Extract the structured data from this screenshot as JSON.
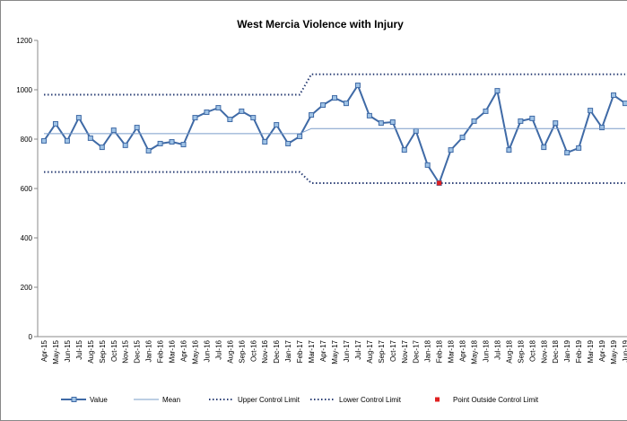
{
  "chart_data": {
    "type": "line",
    "title": "West Mercia Violence with Injury",
    "categories": [
      "Apr-15",
      "May-15",
      "Jun-15",
      "Jul-15",
      "Aug-15",
      "Sep-15",
      "Oct-15",
      "Nov-15",
      "Dec-15",
      "Jan-16",
      "Feb-16",
      "Mar-16",
      "Apr-16",
      "May-16",
      "Jun-16",
      "Jul-16",
      "Aug-16",
      "Sep-16",
      "Oct-16",
      "Nov-16",
      "Dec-16",
      "Jan-17",
      "Feb-17",
      "Mar-17",
      "Apr-17",
      "May-17",
      "Jun-17",
      "Jul-17",
      "Aug-17",
      "Sep-17",
      "Oct-17",
      "Nov-17",
      "Dec-17",
      "Jan-18",
      "Feb-18",
      "Mar-18",
      "Apr-18",
      "May-18",
      "Jun-18",
      "Jul-18",
      "Aug-18",
      "Sep-18",
      "Oct-18",
      "Nov-18",
      "Dec-18",
      "Jan-19",
      "Feb-19",
      "Mar-19",
      "Apr-19",
      "May-19",
      "Jun-19"
    ],
    "series": [
      {
        "name": "Value",
        "color": "#3f6aa6",
        "line_style": "solid",
        "marker": "square",
        "values": [
          793,
          862,
          793,
          887,
          804,
          767,
          836,
          775,
          847,
          753,
          782,
          789,
          778,
          887,
          909,
          927,
          880,
          913,
          887,
          789,
          858,
          782,
          811,
          898,
          938,
          967,
          945,
          1018,
          895,
          865,
          869,
          756,
          833,
          695,
          622,
          756,
          807,
          873,
          913,
          996,
          756,
          873,
          884,
          767,
          865,
          745,
          764,
          916,
          847,
          978,
          945
        ]
      },
      {
        "name": "Mean",
        "color": "#7a9cc9",
        "line_style": "thin",
        "marker": "none",
        "values": [
          822,
          822,
          822,
          822,
          822,
          822,
          822,
          822,
          822,
          822,
          822,
          822,
          822,
          822,
          822,
          822,
          822,
          822,
          822,
          822,
          822,
          822,
          822,
          843,
          843,
          843,
          843,
          843,
          843,
          843,
          843,
          843,
          843,
          843,
          843,
          843,
          843,
          843,
          843,
          843,
          843,
          843,
          843,
          843,
          843,
          843,
          843,
          843,
          843,
          843,
          843
        ]
      },
      {
        "name": "Upper Control Limit",
        "color": "#2b3f75",
        "line_style": "dotted",
        "marker": "none",
        "values": [
          980,
          980,
          980,
          980,
          980,
          980,
          980,
          980,
          980,
          980,
          980,
          980,
          980,
          980,
          980,
          980,
          980,
          980,
          980,
          980,
          980,
          980,
          980,
          1063,
          1063,
          1063,
          1063,
          1063,
          1063,
          1063,
          1063,
          1063,
          1063,
          1063,
          1063,
          1063,
          1063,
          1063,
          1063,
          1063,
          1063,
          1063,
          1063,
          1063,
          1063,
          1063,
          1063,
          1063,
          1063,
          1063,
          1063
        ]
      },
      {
        "name": "Lower Control Limit",
        "color": "#2b3f75",
        "line_style": "dotted",
        "marker": "none",
        "values": [
          667,
          667,
          667,
          667,
          667,
          667,
          667,
          667,
          667,
          667,
          667,
          667,
          667,
          667,
          667,
          667,
          667,
          667,
          667,
          667,
          667,
          667,
          667,
          622,
          622,
          622,
          622,
          622,
          622,
          622,
          622,
          622,
          622,
          622,
          622,
          622,
          622,
          622,
          622,
          622,
          622,
          622,
          622,
          622,
          622,
          622,
          622,
          622,
          622,
          622,
          622
        ]
      },
      {
        "name": "Point Outside Control Limit",
        "color": "#e02020",
        "line_style": "none",
        "marker": "square",
        "values": [
          null,
          null,
          null,
          null,
          null,
          null,
          null,
          null,
          null,
          null,
          null,
          null,
          null,
          null,
          null,
          null,
          null,
          null,
          null,
          null,
          null,
          null,
          null,
          null,
          null,
          null,
          null,
          null,
          null,
          null,
          null,
          null,
          null,
          null,
          622,
          null,
          null,
          null,
          null,
          null,
          null,
          null,
          null,
          null,
          null,
          null,
          null,
          null,
          null,
          null,
          null
        ]
      }
    ],
    "ylim": [
      0,
      1200
    ],
    "yticks": [
      0,
      200,
      400,
      600,
      800,
      1000,
      1200
    ],
    "grid": false,
    "legend": "bottom"
  }
}
